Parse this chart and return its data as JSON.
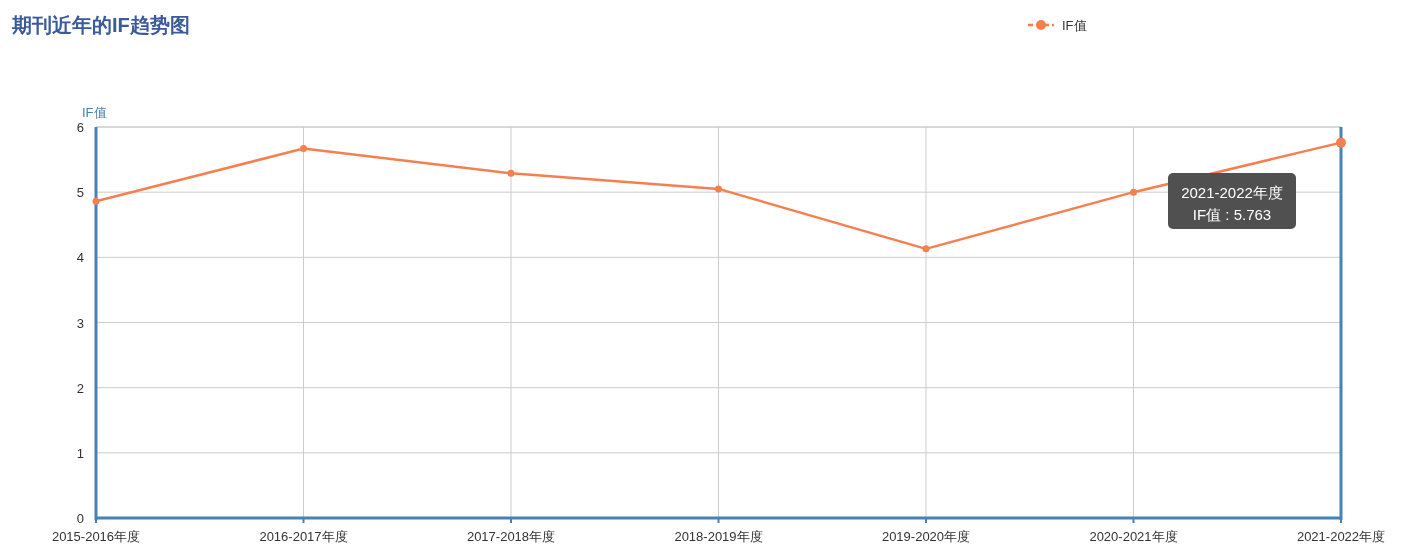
{
  "chart_data": {
    "type": "line",
    "title": "期刊近年的IF趋势图",
    "ylabel": "IF值",
    "categories": [
      "2015-2016年度",
      "2016-2017年度",
      "2017-2018年度",
      "2018-2019年度",
      "2019-2020年度",
      "2020-2021年度",
      "2021-2022年度"
    ],
    "series": [
      {
        "name": "IF值",
        "color": "#f4804f",
        "values": [
          4.86,
          5.67,
          5.29,
          5.05,
          4.13,
          5.0,
          5.76
        ]
      }
    ],
    "ylim": [
      0,
      6
    ],
    "yticks": [
      0,
      1,
      2,
      3,
      4,
      5,
      6
    ],
    "grid": true,
    "legend": "top right",
    "marker": "circle",
    "annotations": [
      "2021-2022年度\nIF值 : 5.763"
    ]
  }
}
